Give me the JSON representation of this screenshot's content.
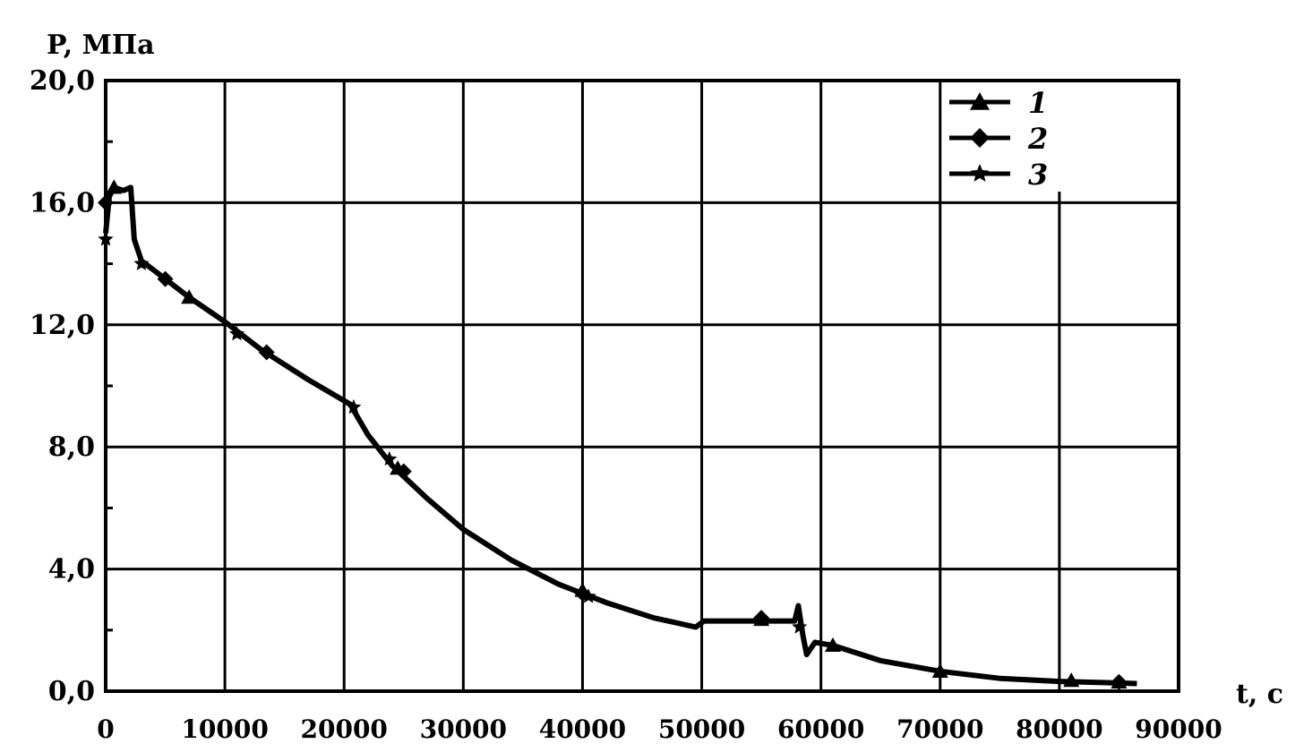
{
  "chart_data": {
    "type": "line",
    "ylabel": "P, МПа",
    "xlabel": "t, c",
    "xlim": [
      0,
      90000
    ],
    "ylim": [
      0,
      20
    ],
    "x_ticks": [
      0,
      10000,
      20000,
      30000,
      40000,
      50000,
      60000,
      70000,
      80000,
      90000
    ],
    "x_tick_labels": [
      "0",
      "10000",
      "20000",
      "30000",
      "40000",
      "50000",
      "60000",
      "70000",
      "80000",
      "90000"
    ],
    "y_ticks": [
      0,
      4,
      8,
      12,
      16,
      20
    ],
    "y_tick_labels": [
      "0,0",
      "4,0",
      "8,0",
      "12,0",
      "16,0",
      "20,0"
    ],
    "grid": true,
    "legend_position": "top-right",
    "series": [
      {
        "name": "1",
        "marker": "triangle",
        "x": [
          0,
          300,
          700,
          1500,
          2100,
          2400,
          3000,
          5000,
          7000,
          10000,
          13000,
          17000,
          20500,
          22000,
          24000,
          27000,
          30000,
          34000,
          38000,
          42000,
          46000,
          49500,
          50200,
          55000,
          57800,
          58100,
          58300,
          58500,
          58800,
          59500,
          61000,
          65000,
          70000,
          75000,
          80000,
          84000,
          86500
        ],
        "y": [
          15.0,
          16.2,
          16.5,
          16.4,
          16.5,
          14.8,
          14.1,
          13.5,
          12.9,
          12.1,
          11.2,
          10.2,
          9.4,
          8.4,
          7.4,
          6.3,
          5.3,
          4.3,
          3.5,
          2.9,
          2.4,
          2.1,
          2.3,
          2.3,
          2.3,
          2.8,
          2.3,
          1.8,
          1.2,
          1.6,
          1.5,
          1.0,
          0.65,
          0.42,
          0.32,
          0.28,
          0.25
        ],
        "markers_x": [
          700,
          7000,
          24500,
          40000,
          55000,
          61000,
          70000,
          81000,
          85000
        ],
        "markers_y": [
          16.5,
          12.9,
          7.3,
          3.3,
          2.35,
          1.5,
          0.65,
          0.35,
          0.3
        ]
      },
      {
        "name": "2",
        "marker": "diamond",
        "x": [
          0,
          300,
          700,
          1500,
          2100,
          2400,
          3000,
          5000,
          7000,
          10000,
          13000,
          17000,
          20500,
          22000,
          24000,
          27000,
          30000,
          34000,
          38000,
          42000,
          46000,
          49500,
          50200,
          55000,
          57800,
          58100,
          58300,
          58500,
          58800,
          59500,
          61000,
          65000,
          70000,
          75000,
          80000,
          84000,
          86500
        ],
        "y": [
          15.0,
          16.2,
          16.5,
          16.4,
          16.5,
          14.8,
          14.1,
          13.5,
          12.9,
          12.1,
          11.2,
          10.2,
          9.4,
          8.4,
          7.4,
          6.3,
          5.3,
          4.3,
          3.5,
          2.9,
          2.4,
          2.1,
          2.3,
          2.3,
          2.3,
          2.8,
          2.3,
          1.8,
          1.2,
          1.6,
          1.5,
          1.0,
          0.65,
          0.42,
          0.32,
          0.28,
          0.25
        ],
        "markers_x": [
          0,
          5000,
          13500,
          25000,
          40000,
          55000,
          85000
        ],
        "markers_y": [
          16.0,
          13.5,
          11.1,
          7.2,
          3.2,
          2.4,
          0.3
        ]
      },
      {
        "name": "3",
        "marker": "star",
        "x": [
          0,
          300,
          700,
          1500,
          2100,
          2400,
          3000,
          5000,
          7000,
          10000,
          13000,
          17000,
          20500,
          22000,
          24000,
          27000,
          30000,
          34000,
          38000,
          42000,
          46000,
          49500,
          50200,
          55000,
          57800,
          58100,
          58300,
          58500,
          58800,
          59500,
          61000,
          65000,
          70000,
          75000,
          80000,
          84000,
          86500
        ],
        "y": [
          15.0,
          16.2,
          16.5,
          16.4,
          16.5,
          14.8,
          14.1,
          13.5,
          12.9,
          12.1,
          11.2,
          10.2,
          9.4,
          8.4,
          7.4,
          6.3,
          5.3,
          4.3,
          3.5,
          2.9,
          2.4,
          2.1,
          2.3,
          2.3,
          2.3,
          2.8,
          2.3,
          1.8,
          1.2,
          1.6,
          1.5,
          1.0,
          0.65,
          0.42,
          0.32,
          0.28,
          0.25
        ],
        "markers_x": [
          0,
          3000,
          11000,
          20800,
          23800,
          40500,
          58200
        ],
        "markers_y": [
          14.8,
          14.0,
          11.7,
          9.3,
          7.6,
          3.1,
          2.1
        ]
      }
    ]
  }
}
